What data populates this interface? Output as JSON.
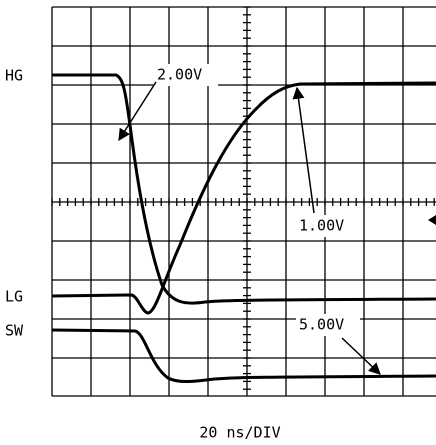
{
  "channels": {
    "hg": "HG",
    "lg": "LG",
    "sw": "SW"
  },
  "annotations": {
    "hg_scale": "2.00V",
    "lg_scale": "1.00V",
    "sw_scale": "5.00V"
  },
  "timebase": "20 ns/DIV"
}
